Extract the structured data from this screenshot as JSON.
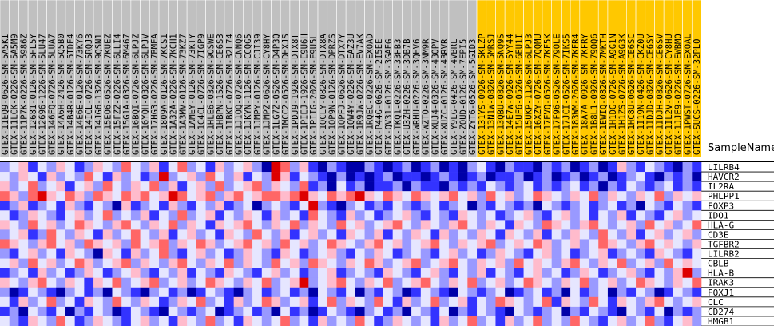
{
  "chart_data": {
    "type": "heatmap",
    "header": "SampleName",
    "columns": [
      "GTEX-11EQ9-0626-SM-5A5KI",
      "GTEX-11LCK-0226-SM-5A5M9",
      "GTEX-11P7K-0226-SM-5986Z",
      "GTEX-12681-0126-SM-5HL5Y",
      "GTEX-12696-1226-SM-5LU47",
      "GTEX-146FQ-0726-SM-5LUA7",
      "GTEX-14A6H-2426-SM-5Q5B0",
      "GTEX-14B4R-0126-SM-5TDE4",
      "GTEX-14E6E-0126-SM-73KY6",
      "GTEX-14ICL-0726-SM-5RQJ3",
      "GTEX-14JG6-1326-SM-9QSN1",
      "GTEX-15EO6-0526-SM-7KUEZ",
      "GTEX-15FZZ-0226-SM-6LLI4",
      "GTEX-15G1A-0326-SM-6M467",
      "GTEX-16BQI-0726-SM-6LPJZ",
      "GTEX-16YQH-0326-SM-6LPJV",
      "GTEX-17HG3-0226-SM-7BMEA",
      "GTEX-1809A-0126-SM-7KCS1",
      "GTEX-1A32A-0226-SM-7KCH1",
      "GTEX-1A3MV-0126-SM-73KZ7",
      "GTEX-1AMEY-0126-SM-73KTY",
      "GTEX-1C4CL-0726-SM-7IGP9",
      "GTEX-1HLE6-0326-SM-9OSWE",
      "GTEX-1HBPN-1526-SM-CE6S3",
      "GTEX-1IBKC-0726-SM-B2L74",
      "GTEX-1J1OQ-0726-SM-CNNQ6",
      "GTEX-1JKYN-1126-SM-CGQG5",
      "GTEX-1JMPY-0126-SM-CJI39",
      "GTEX-1JMPZ-0626-SM-CY8HY",
      "GTEX-1LG7Z-0526-SM-D4P3Q",
      "GTEX-1MCC2-0526-SM-DHXJS",
      "GTEX-1PDJ9-1926-SM-DTX8T",
      "GTEX-1PIEJ-1926-SM-E9U6H",
      "GTEX-1PIIG-2026-SM-E9U5L",
      "GTEX-1QCLY-0826-SM-DTX8A",
      "GTEX-1QP9N-0126-SM-DPRZS",
      "GTEX-1QPFJ-0626-SM-DTX7Y",
      "GTEX-1QW4Y-0226-SM-EAZ3U",
      "GTEX-1R9JW-0226-SM-EV7AK",
      "GTEX-1RQEC-0226-SM-EXOAD",
      "GTEX-P44G-0626-SM-2I5EE",
      "GTEX-QV31-0126-SM-3GAEG",
      "GTEX-TKQ1-0226-SM-33HB3",
      "GTEX-U3ZH-0226-SM-3DB7B",
      "GTEX-WRHU-0226-SM-3QHV6",
      "GTEX-WZTO-0226-SM-3NM9R",
      "GTEX-XUJ4-0326-SM-4BOPV",
      "GTEX-XUZC-0126-SM-4BRVR",
      "GTEX-Y9LG-0426-SM-4VBRL",
      "GTEX-ZQUD-0126-SM-7EPI5",
      "GTEX-ZYT6-0526-SM-5GID3",
      "GTEX-131YS-0926-SM-5KLZP",
      "GTEX-13N1W-0826-SM-5MRSJ",
      "GTEX-13QBU-0826-SM-5NQ9S",
      "GTEX-14E7W-0926-SM-5YY44",
      "GTEX-15UF6-0526-SM-6EU1I",
      "GTEX-15UKP-1126-SM-6LPJ3",
      "GTEX-16XZY-0726-SM-7QQMU",
      "GTEX-17EVQ-0526-SM-7KF5K",
      "GTEX-17F96-0526-SM-79OLE",
      "GTEX-17JCI-0526-SM-7IKS5",
      "GTEX-183WM-2626-SM-7KFR4",
      "GTEX-18A7A-0926-SM-7KFRY",
      "GTEX-1B8L1-0926-SM-79OQ6",
      "GTEX-1EWIQ-0826-SM-7MKTH",
      "GTEX-1H1DG-0726-SM-A9G1N",
      "GTEX-1H1ZS-0726-SM-A9G3K",
      "GTEX-1HC8U-0626-SM-CE6SC",
      "GTEX-1I19N-0426-SM-CKZ0U",
      "GTEX-1IDJD-0826-SM-CE6SY",
      "GTEX-1IDJH-0826-SM-CE6SV",
      "GTEX-1IL2V-0626-SM-CY8HU",
      "GTEX-1JJE9-0226-SM-EWBMO",
      "GTEX-1PWST-0726-SM-EXOAL",
      "GTEX-SUCS-0226-SM-32PLO"
    ],
    "column_group": [
      0,
      0,
      0,
      0,
      0,
      0,
      0,
      0,
      0,
      0,
      0,
      0,
      0,
      0,
      0,
      0,
      0,
      0,
      0,
      0,
      0,
      0,
      0,
      0,
      0,
      0,
      0,
      0,
      0,
      0,
      0,
      0,
      0,
      0,
      0,
      0,
      0,
      0,
      0,
      0,
      0,
      0,
      0,
      0,
      0,
      0,
      0,
      0,
      0,
      0,
      0,
      1,
      1,
      1,
      1,
      1,
      1,
      1,
      1,
      1,
      1,
      1,
      1,
      1,
      1,
      1,
      1,
      1,
      1,
      1,
      1,
      1,
      1,
      1,
      1
    ],
    "group_colors": [
      "#c0c0c0",
      "#ffc800"
    ],
    "rows": [
      "LILRB4",
      "HAVCR2",
      "IL2RA",
      "PHLPP1",
      "FOXP3",
      "IDO1",
      "HLA-G",
      "CD3E",
      "TGFBR2",
      "LILRB2",
      "CBLB",
      "HLA-B",
      "IRAK3",
      "FOXJ1",
      "CLC",
      "CD274",
      "HMGB1"
    ],
    "vmin": -3,
    "vmax": 3,
    "colormap": [
      "#0000a8",
      "#3333ff",
      "#9999ff",
      "#e6e6ff",
      "#ffbbcc",
      "#ff6666",
      "#dd0000"
    ],
    "values": [
      [
        -1,
        0,
        1,
        -2,
        0,
        -1,
        1,
        0,
        -2,
        -1,
        1,
        0,
        -1,
        2,
        0,
        -1,
        1,
        -2,
        0,
        2,
        -1,
        0,
        -2,
        1,
        -1,
        0,
        1,
        -1,
        -3,
        3,
        2,
        -1,
        1,
        -2,
        -3,
        -1,
        -2,
        -3,
        -3,
        -1,
        -2,
        -3,
        -2,
        -1,
        -3,
        -2,
        -1,
        -3,
        -2,
        -3,
        -1,
        0,
        -2,
        -3,
        -1,
        -2,
        -2,
        -3,
        -1,
        -2,
        -1,
        -3,
        -2,
        -1,
        -3,
        -2,
        1,
        -1,
        -2,
        0,
        -1,
        -2,
        -3,
        -1,
        -2
      ],
      [
        0,
        -1,
        1,
        0,
        -2,
        1,
        -1,
        0,
        -1,
        2,
        0,
        -2,
        1,
        -1,
        0,
        -2,
        -1,
        3,
        -1,
        0,
        1,
        -1,
        2,
        0,
        -1,
        1,
        -2,
        0,
        -1,
        3,
        1,
        -2,
        0,
        -1,
        -2,
        -3,
        -1,
        -3,
        -2,
        -3,
        -2,
        -1,
        -3,
        -2,
        -2,
        -3,
        -2,
        -1,
        -2,
        -3,
        -2,
        -1,
        -3,
        -2,
        -2,
        -1,
        -3,
        -2,
        -1,
        -3,
        -2,
        -1,
        -3,
        -2,
        -1,
        -3,
        -2,
        -1,
        0,
        -2,
        -3,
        -1,
        -2,
        -1,
        -3
      ],
      [
        1,
        -1,
        0,
        2,
        -1,
        0,
        1,
        -2,
        0,
        1,
        -1,
        2,
        0,
        -1,
        1,
        0,
        2,
        -1,
        1,
        -2,
        0,
        1,
        -1,
        2,
        -1,
        0,
        1,
        2,
        -1,
        1,
        0,
        -1,
        2,
        -2,
        -1,
        -3,
        0,
        -2,
        -1,
        -3,
        -2,
        -2,
        -1,
        -3,
        -1,
        -2,
        -2,
        -3,
        -1,
        -2,
        -1,
        -2,
        0,
        -1,
        -2,
        -1,
        0,
        -2,
        -1,
        -2,
        -1,
        0,
        -2,
        -1,
        -3,
        -1,
        -2,
        0,
        -1,
        -2,
        -1,
        0,
        -2,
        -1,
        -2
      ],
      [
        2,
        1,
        -1,
        2,
        3,
        1,
        0,
        2,
        1,
        -1,
        2,
        1,
        0,
        2,
        1,
        2,
        0,
        1,
        3,
        2,
        0,
        1,
        2,
        -1,
        1,
        2,
        0,
        1,
        2,
        2,
        1,
        2,
        3,
        1,
        0,
        2,
        1,
        2,
        3,
        1,
        0,
        2,
        1,
        0,
        2,
        1,
        0,
        1,
        2,
        0,
        1,
        -1,
        2,
        0,
        1,
        -1,
        0,
        2,
        1,
        0,
        -1,
        1,
        0,
        2,
        -1,
        1,
        0,
        -1,
        1,
        0,
        2,
        -1,
        1,
        0,
        1
      ],
      [
        -2,
        -1,
        1,
        -2,
        -1,
        0,
        -2,
        1,
        -1,
        -2,
        0,
        -1,
        -3,
        1,
        -2,
        -1,
        0,
        -2,
        1,
        -1,
        -2,
        0,
        -1,
        1,
        -2,
        -1,
        0,
        -3,
        -1,
        0,
        -1,
        -2,
        0,
        3,
        -1,
        -2,
        -3,
        -1,
        0,
        -2,
        -1,
        -2,
        0,
        -1,
        -2,
        -1,
        0,
        -2,
        -1,
        0,
        -3,
        -1,
        -2,
        0,
        -1,
        -2,
        -1,
        -3,
        0,
        -1,
        -2,
        -1,
        0,
        -2,
        -1,
        0,
        -2,
        -1,
        -3,
        0,
        -1,
        -2,
        0,
        -1,
        -2
      ],
      [
        0,
        -2,
        -1,
        1,
        0,
        -1,
        -2,
        0,
        1,
        -1,
        0,
        2,
        -1,
        0,
        -1,
        1,
        -2,
        0,
        -1,
        2,
        -1,
        0,
        1,
        -2,
        0,
        -1,
        1,
        0,
        -2,
        1,
        -1,
        0,
        -2,
        2,
        0,
        -1,
        -2,
        1,
        -1,
        0,
        -2,
        -1,
        0,
        1,
        -1,
        -2,
        0,
        -1,
        -2,
        1,
        0,
        -1,
        0,
        -2,
        -1,
        0,
        1,
        -1,
        -2,
        0,
        1,
        -1,
        0,
        -2,
        0,
        -1,
        1,
        -2,
        0,
        -1,
        -2,
        0,
        1,
        -1,
        0
      ],
      [
        1,
        0,
        -1,
        2,
        0,
        1,
        -1,
        0,
        2,
        1,
        0,
        -1,
        1,
        2,
        0,
        -1,
        1,
        0,
        2,
        -1,
        1,
        0,
        -2,
        1,
        0,
        1,
        2,
        0,
        -1,
        1,
        0,
        2,
        -1,
        1,
        0,
        -1,
        2,
        0,
        1,
        -1,
        0,
        1,
        2,
        0,
        -1,
        1,
        0,
        -1,
        1,
        2,
        0,
        -1,
        1,
        0,
        -2,
        1,
        0,
        -1,
        2,
        1,
        0,
        -1,
        1,
        2,
        0,
        -1,
        0,
        1,
        -1,
        2,
        0,
        1,
        -1,
        0,
        2
      ],
      [
        -1,
        0,
        1,
        -2,
        -1,
        2,
        0,
        -1,
        1,
        0,
        -2,
        1,
        -1,
        0,
        2,
        0,
        -1,
        1,
        -2,
        0,
        1,
        -1,
        0,
        -2,
        1,
        0,
        -1,
        2,
        0,
        -1,
        1,
        -2,
        0,
        1,
        -1,
        0,
        -2,
        1,
        0,
        -1,
        1,
        -2,
        0,
        -1,
        1,
        0,
        -2,
        1,
        -1,
        0,
        -1,
        1,
        0,
        -2,
        1,
        0,
        -1,
        1,
        -2,
        0,
        -1,
        1,
        0,
        -1,
        2,
        0,
        -1,
        1,
        -2,
        0,
        1,
        -1,
        0,
        1,
        -1
      ],
      [
        2,
        1,
        0,
        -1,
        1,
        2,
        0,
        1,
        -1,
        2,
        1,
        0,
        1,
        -1,
        2,
        0,
        1,
        2,
        -1,
        1,
        0,
        2,
        1,
        -1,
        0,
        1,
        2,
        0,
        1,
        -1,
        2,
        0,
        1,
        -1,
        0,
        2,
        1,
        0,
        -1,
        1,
        2,
        0,
        1,
        -1,
        0,
        1,
        2,
        0,
        -1,
        1,
        0,
        1,
        2,
        -1,
        0,
        1,
        0,
        2,
        1,
        -1,
        0,
        1,
        -1,
        0,
        2,
        1,
        0,
        -1,
        1,
        2,
        0,
        1,
        0,
        -1,
        1
      ],
      [
        -1,
        -2,
        0,
        1,
        -1,
        0,
        -2,
        1,
        0,
        -1,
        -3,
        1,
        0,
        -2,
        1,
        -1,
        0,
        2,
        -1,
        -2,
        0,
        1,
        -1,
        0,
        -2,
        -1,
        1,
        0,
        -1,
        -2,
        1,
        0,
        -2,
        -1,
        0,
        1,
        -1,
        -2,
        0,
        -1,
        1,
        0,
        -2,
        -1,
        0,
        -1,
        -2,
        0,
        1,
        -1,
        0,
        -2,
        -1,
        1,
        0,
        -1,
        -2,
        0,
        1,
        -1,
        0,
        -2,
        -1,
        0,
        1,
        -2,
        -1,
        0,
        -1,
        -2,
        1,
        0,
        -1,
        -2,
        0
      ],
      [
        0,
        1,
        -1,
        2,
        0,
        1,
        -1,
        0,
        2,
        1,
        -1,
        0,
        1,
        2,
        -1,
        1,
        0,
        -1,
        1,
        2,
        0,
        -1,
        1,
        0,
        2,
        -1,
        1,
        0,
        -1,
        2,
        0,
        1,
        -1,
        2,
        1,
        0,
        -1,
        1,
        0,
        2,
        1,
        -1,
        0,
        1,
        2,
        -1,
        0,
        1,
        2,
        0,
        -1,
        1,
        0,
        1,
        -1,
        2,
        0,
        1,
        0,
        -1,
        1,
        2,
        0,
        -1,
        1,
        0,
        2,
        -1,
        0,
        1,
        -1,
        2,
        0,
        1,
        0
      ],
      [
        -2,
        -1,
        0,
        -2,
        1,
        -1,
        0,
        -2,
        -1,
        1,
        0,
        -2,
        -1,
        0,
        1,
        -1,
        -2,
        0,
        -1,
        1,
        -2,
        0,
        -1,
        -2,
        1,
        0,
        -1,
        -2,
        0,
        1,
        -1,
        0,
        -2,
        -1,
        0,
        1,
        -2,
        -1,
        0,
        -1,
        -2,
        1,
        0,
        -1,
        -2,
        0,
        1,
        -1,
        -2,
        0,
        -1,
        1,
        -2,
        0,
        -1,
        -2,
        0,
        1,
        -1,
        0,
        -2,
        -1,
        1,
        0,
        -2,
        -1,
        0,
        1,
        -1,
        -2,
        0,
        -1,
        1,
        3,
        -1
      ],
      [
        1,
        0,
        -1,
        1,
        2,
        0,
        -1,
        1,
        0,
        -2,
        1,
        0,
        2,
        -1,
        0,
        1,
        2,
        -1,
        0,
        1,
        -1,
        0,
        2,
        1,
        0,
        -1,
        1,
        0,
        2,
        -1,
        0,
        1,
        3,
        -1,
        0,
        1,
        2,
        0,
        -1,
        1,
        0,
        2,
        -1,
        0,
        1,
        2,
        0,
        -1,
        1,
        0,
        2,
        -1,
        0,
        1,
        -1,
        0,
        2,
        1,
        0,
        -1,
        1,
        0,
        2,
        -1,
        0,
        1,
        -1,
        0,
        2,
        1,
        0,
        -1,
        1,
        0,
        2
      ],
      [
        -1,
        -3,
        -2,
        0,
        -1,
        -2,
        -3,
        -1,
        0,
        -2,
        -1,
        -3,
        0,
        -1,
        -2,
        -3,
        -1,
        0,
        -2,
        -1,
        -3,
        -2,
        0,
        -1,
        -2,
        -3,
        -1,
        0,
        -2,
        -1,
        0,
        -2,
        -1,
        -3,
        0,
        -1,
        -2,
        0,
        -3,
        -1,
        -2,
        0,
        -1,
        -3,
        -2,
        0,
        -1,
        -2,
        -3,
        0,
        -1,
        -2,
        -1,
        0,
        -3,
        -2,
        -1,
        0,
        -2,
        -1,
        -3,
        0,
        -2,
        -1,
        0,
        -3,
        -1,
        -2,
        0,
        -1,
        -3,
        -2,
        0,
        -1,
        -2
      ],
      [
        0,
        -2,
        1,
        -1,
        0,
        2,
        -1,
        0,
        -2,
        1,
        0,
        -1,
        2,
        0,
        -1,
        1,
        0,
        -2,
        -1,
        1,
        0,
        2,
        -1,
        0,
        -2,
        1,
        -1,
        0,
        2,
        1,
        -1,
        0,
        1,
        -2,
        0,
        2,
        -1,
        1,
        0,
        -1,
        2,
        0,
        -2,
        1,
        -1,
        0,
        2,
        -1,
        0,
        1,
        -2,
        0,
        -1,
        2,
        1,
        0,
        -1,
        0,
        2,
        -2,
        1,
        0,
        -1,
        2,
        0,
        -2,
        1,
        0,
        -1,
        1,
        2,
        0,
        -1,
        0,
        1
      ],
      [
        -2,
        -1,
        -3,
        0,
        -1,
        -2,
        0,
        -3,
        -1,
        -2,
        0,
        -1,
        -3,
        -2,
        0,
        -1,
        -2,
        -3,
        0,
        -1,
        -2,
        -1,
        0,
        -3,
        -2,
        -1,
        0,
        -2,
        -1,
        -3,
        0,
        -2,
        -1,
        -3,
        -2,
        0,
        -1,
        -2,
        -3,
        -1,
        0,
        -2,
        -1,
        -3,
        0,
        -1,
        -2,
        0,
        -3,
        -1,
        -2,
        0,
        -1,
        -2,
        -3,
        0,
        -1,
        -2,
        -1,
        0,
        -3,
        -1,
        -2,
        0,
        -1,
        -2,
        -3,
        0,
        -1,
        -2,
        0,
        -3,
        -1,
        -2,
        -1
      ],
      [
        0,
        -1,
        -2,
        1,
        0,
        -1,
        2,
        0,
        -2,
        -1,
        1,
        0,
        -1,
        -2,
        0,
        1,
        -1,
        0,
        -2,
        1,
        0,
        -1,
        2,
        -1,
        0,
        -2,
        1,
        0,
        -1,
        0,
        2,
        -1,
        0,
        -2,
        1,
        -1,
        0,
        -1,
        2,
        0,
        -2,
        -1,
        1,
        0,
        -1,
        0,
        -2,
        1,
        -1,
        0,
        2,
        -1,
        0,
        -2,
        1,
        -1,
        0,
        2,
        -1,
        0,
        -1,
        2,
        0,
        -1,
        -2,
        0,
        1,
        -1,
        0,
        2,
        -1,
        -2,
        0,
        1,
        -1
      ]
    ]
  }
}
